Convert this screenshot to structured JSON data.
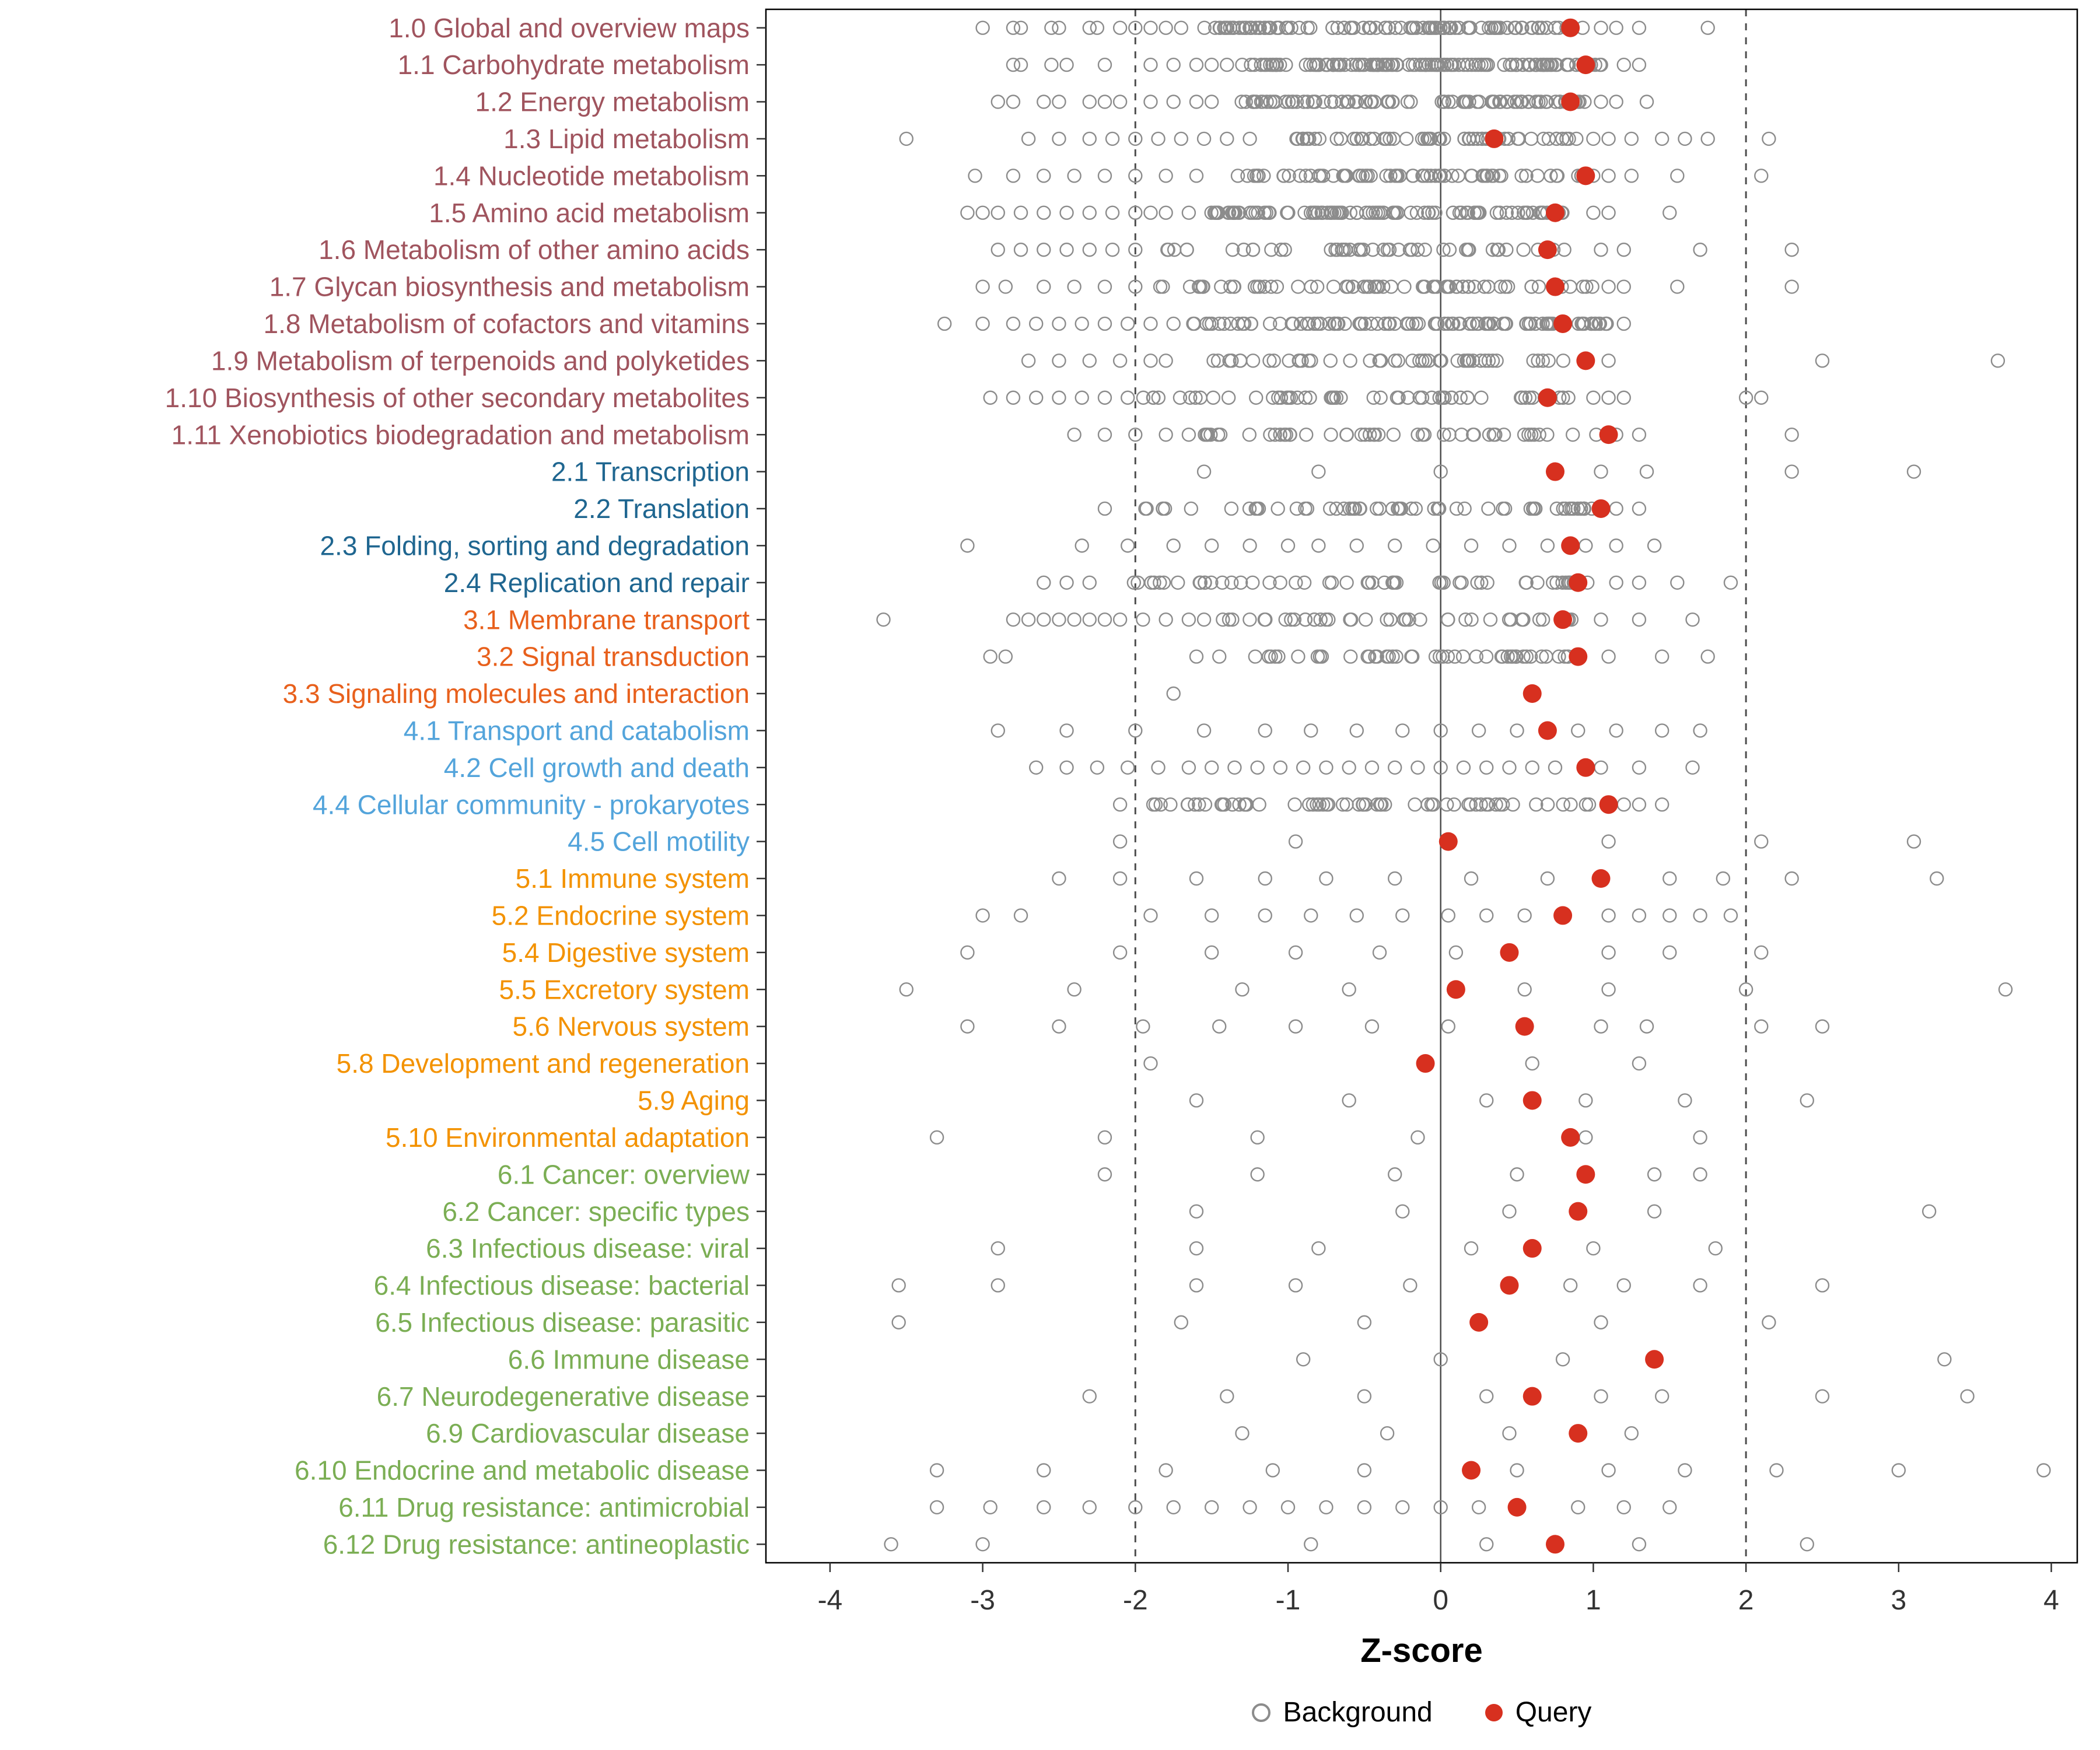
{
  "chart_data": {
    "type": "scatter",
    "title": "",
    "xlabel": "Z-score",
    "x_ticks": [
      -4,
      -3,
      -2,
      -1,
      0,
      1,
      2,
      3,
      4
    ],
    "x_tick_labels": [
      "-4",
      "-3",
      "-2",
      "-1",
      "0",
      "1",
      "2",
      "3",
      "4"
    ],
    "x_range": [
      -4.42,
      4.17
    ],
    "reference_lines": {
      "solid": [
        0
      ],
      "dashed": [
        -2,
        2
      ]
    },
    "legend": {
      "background": "Background",
      "query": "Query"
    },
    "colors": {
      "query": "#D7301F",
      "background": "#8C8C8C",
      "panel_border": "#000000",
      "reference_line": "#4d4d4d",
      "axis_text": "#333333"
    },
    "group_colors": {
      "metabolism": "#A0545E",
      "genetic-info": "#1F6690",
      "env-info": "#E8601C",
      "cellular": "#53A4DB",
      "organismal": "#F39200",
      "disease": "#7BAE54"
    },
    "categories": [
      {
        "label": "1.0 Global and overview maps",
        "group": "metabolism",
        "query": 0.85,
        "bg_cluster": {
          "n": 110,
          "min": -1.55,
          "max": 0.95
        },
        "bg_points": [
          -3.0,
          -2.8,
          -2.75,
          -2.55,
          -2.5,
          -2.3,
          -2.25,
          -2.1,
          -2.0,
          -1.9,
          -1.8,
          -1.7,
          1.05,
          1.15,
          1.3,
          1.75
        ]
      },
      {
        "label": "1.1 Carbohydrate metabolism",
        "group": "metabolism",
        "query": 0.95,
        "bg_cluster": {
          "n": 120,
          "min": -1.25,
          "max": 1.1
        },
        "bg_points": [
          -2.8,
          -2.75,
          -2.55,
          -2.45,
          -2.2,
          -1.9,
          -1.75,
          -1.6,
          -1.5,
          -1.4,
          -1.3,
          1.2,
          1.3
        ]
      },
      {
        "label": "1.2 Energy metabolism",
        "group": "metabolism",
        "query": 0.85,
        "bg_cluster": {
          "n": 90,
          "min": -1.35,
          "max": 0.95
        },
        "bg_points": [
          -2.9,
          -2.8,
          -2.6,
          -2.5,
          -2.3,
          -2.2,
          -2.1,
          -1.9,
          -1.75,
          -1.6,
          -1.5,
          1.05,
          1.15,
          1.35
        ]
      },
      {
        "label": "1.3 Lipid metabolism",
        "group": "metabolism",
        "query": 0.35,
        "bg_cluster": {
          "n": 60,
          "min": -1.05,
          "max": 0.9
        },
        "bg_points": [
          -3.5,
          -2.7,
          -2.5,
          -2.3,
          -2.15,
          -2.0,
          -1.85,
          -1.7,
          -1.55,
          -1.4,
          -1.25,
          1.0,
          1.1,
          1.25,
          1.45,
          1.6,
          1.75,
          2.15
        ]
      },
      {
        "label": "1.4 Nucleotide metabolism",
        "group": "metabolism",
        "query": 0.95,
        "bg_cluster": {
          "n": 70,
          "min": -1.4,
          "max": 1.0
        },
        "bg_points": [
          -3.05,
          -2.8,
          -2.6,
          -2.4,
          -2.2,
          -2.0,
          -1.8,
          -1.6,
          1.1,
          1.25,
          1.55,
          2.1
        ]
      },
      {
        "label": "1.5 Amino acid metabolism",
        "group": "metabolism",
        "query": 0.75,
        "bg_cluster": {
          "n": 100,
          "min": -1.55,
          "max": 0.9
        },
        "bg_points": [
          -3.1,
          -3.0,
          -2.9,
          -2.75,
          -2.6,
          -2.45,
          -2.3,
          -2.15,
          -2.0,
          -1.9,
          -1.8,
          -1.65,
          1.0,
          1.1,
          1.5
        ]
      },
      {
        "label": "1.6 Metabolism of other amino acids",
        "group": "metabolism",
        "query": 0.7,
        "bg_cluster": {
          "n": 45,
          "min": -1.8,
          "max": 0.95
        },
        "bg_points": [
          -2.9,
          -2.75,
          -2.6,
          -2.45,
          -2.3,
          -2.15,
          -2.0,
          1.05,
          1.2,
          1.7,
          2.3
        ]
      },
      {
        "label": "1.7 Glycan biosynthesis and metabolism",
        "group": "metabolism",
        "query": 0.75,
        "bg_cluster": {
          "n": 70,
          "min": -1.85,
          "max": 1.0
        },
        "bg_points": [
          -3.0,
          -2.85,
          -2.6,
          -2.4,
          -2.2,
          -2.0,
          1.1,
          1.2,
          1.55,
          2.3
        ]
      },
      {
        "label": "1.8 Metabolism of cofactors and vitamins",
        "group": "metabolism",
        "query": 0.8,
        "bg_cluster": {
          "n": 95,
          "min": -1.65,
          "max": 1.1
        },
        "bg_points": [
          -3.25,
          -3.0,
          -2.8,
          -2.65,
          -2.5,
          -2.35,
          -2.2,
          -2.05,
          -1.9,
          -1.75,
          1.2
        ]
      },
      {
        "label": "1.9 Metabolism of terpenoids and polyketides",
        "group": "metabolism",
        "query": 0.95,
        "bg_cluster": {
          "n": 50,
          "min": -1.7,
          "max": 1.0
        },
        "bg_points": [
          -2.7,
          -2.5,
          -2.3,
          -2.1,
          -1.9,
          -1.8,
          1.1,
          2.5,
          3.65
        ]
      },
      {
        "label": "1.10 Biosynthesis of other secondary metabolites",
        "group": "metabolism",
        "query": 0.7,
        "bg_cluster": {
          "n": 55,
          "min": -1.95,
          "max": 0.85
        },
        "bg_points": [
          -2.95,
          -2.8,
          -2.65,
          -2.5,
          -2.35,
          -2.2,
          -2.05,
          1.0,
          1.1,
          1.2,
          2.0,
          2.1
        ]
      },
      {
        "label": "1.11 Xenobiotics biodegradation and metabolism",
        "group": "metabolism",
        "query": 1.1,
        "bg_cluster": {
          "n": 45,
          "min": -1.55,
          "max": 1.05
        },
        "bg_points": [
          -2.4,
          -2.2,
          -2.0,
          -1.8,
          -1.65,
          1.15,
          1.3,
          2.3
        ]
      },
      {
        "label": "2.1 Transcription",
        "group": "genetic-info",
        "query": 0.75,
        "bg_points": [
          -1.55,
          -0.8,
          0.0,
          1.05,
          1.35,
          2.3,
          3.1
        ]
      },
      {
        "label": "2.2 Translation",
        "group": "genetic-info",
        "query": 1.05,
        "bg_cluster": {
          "n": 60,
          "min": -1.95,
          "max": 1.0
        },
        "bg_points": [
          -2.2,
          1.15,
          1.3
        ]
      },
      {
        "label": "2.3 Folding, sorting and degradation",
        "group": "genetic-info",
        "query": 0.85,
        "bg_points": [
          -3.1,
          -2.35,
          -2.05,
          -1.75,
          -1.5,
          -1.25,
          -1.0,
          -0.8,
          -0.55,
          -0.3,
          -0.05,
          0.2,
          0.45,
          0.7,
          0.95,
          1.15,
          1.4
        ]
      },
      {
        "label": "2.4 Replication and repair",
        "group": "genetic-info",
        "query": 0.9,
        "bg_cluster": {
          "n": 55,
          "min": -2.1,
          "max": 1.0
        },
        "bg_points": [
          -2.6,
          -2.45,
          -2.3,
          1.15,
          1.3,
          1.55,
          1.9
        ]
      },
      {
        "label": "3.1 Membrane transport",
        "group": "env-info",
        "query": 0.8,
        "bg_cluster": {
          "n": 40,
          "min": -1.45,
          "max": 0.9
        },
        "bg_points": [
          -3.65,
          -2.8,
          -2.7,
          -2.6,
          -2.5,
          -2.4,
          -2.3,
          -2.2,
          -2.1,
          -1.95,
          -1.8,
          -1.65,
          -1.55,
          1.05,
          1.3,
          1.65
        ]
      },
      {
        "label": "3.2 Signal transduction",
        "group": "env-info",
        "query": 0.9,
        "bg_cluster": {
          "n": 45,
          "min": -1.3,
          "max": 0.95
        },
        "bg_points": [
          -2.95,
          -2.85,
          -1.6,
          -1.45,
          1.1,
          1.45,
          1.75
        ]
      },
      {
        "label": "3.3 Signaling molecules and interaction",
        "group": "env-info",
        "query": 0.6,
        "bg_points": [
          -1.75
        ]
      },
      {
        "label": "4.1 Transport and catabolism",
        "group": "cellular",
        "query": 0.7,
        "bg_points": [
          -2.9,
          -2.45,
          -2.0,
          -1.55,
          -1.15,
          -0.85,
          -0.55,
          -0.25,
          0.0,
          0.25,
          0.5,
          0.9,
          1.15,
          1.45,
          1.7
        ]
      },
      {
        "label": "4.2 Cell growth and death",
        "group": "cellular",
        "query": 0.95,
        "bg_points": [
          -2.65,
          -2.45,
          -2.25,
          -2.05,
          -1.85,
          -1.65,
          -1.5,
          -1.35,
          -1.2,
          -1.05,
          -0.9,
          -0.75,
          -0.6,
          -0.45,
          -0.3,
          -0.15,
          0.0,
          0.15,
          0.3,
          0.45,
          0.6,
          0.75,
          1.05,
          1.3,
          1.65
        ]
      },
      {
        "label": "4.4 Cellular community - prokaryotes",
        "group": "cellular",
        "query": 1.1,
        "bg_cluster": {
          "n": 60,
          "min": -1.9,
          "max": 1.0
        },
        "bg_points": [
          -2.1,
          1.2,
          1.3,
          1.45
        ]
      },
      {
        "label": "4.5 Cell motility",
        "group": "cellular",
        "query": 0.05,
        "bg_points": [
          -2.1,
          -0.95,
          1.1,
          2.1,
          3.1
        ]
      },
      {
        "label": "5.1 Immune system",
        "group": "organismal",
        "query": 1.05,
        "bg_points": [
          -2.5,
          -2.1,
          -1.6,
          -1.15,
          -0.75,
          -0.3,
          0.2,
          0.7,
          1.5,
          1.85,
          2.3,
          3.25
        ]
      },
      {
        "label": "5.2 Endocrine system",
        "group": "organismal",
        "query": 0.8,
        "bg_points": [
          -3.0,
          -2.75,
          -1.9,
          -1.5,
          -1.15,
          -0.85,
          -0.55,
          -0.25,
          0.05,
          0.3,
          0.55,
          1.1,
          1.3,
          1.5,
          1.7,
          1.9
        ]
      },
      {
        "label": "5.4 Digestive system",
        "group": "organismal",
        "query": 0.45,
        "bg_points": [
          -3.1,
          -2.1,
          -1.5,
          -0.95,
          -0.4,
          0.1,
          1.1,
          1.5,
          2.1
        ]
      },
      {
        "label": "5.5 Excretory system",
        "group": "organismal",
        "query": 0.1,
        "bg_points": [
          -3.5,
          -2.4,
          -1.3,
          -0.6,
          0.55,
          1.1,
          2.0,
          3.7
        ]
      },
      {
        "label": "5.6 Nervous system",
        "group": "organismal",
        "query": 0.55,
        "bg_points": [
          -3.1,
          -2.5,
          -1.95,
          -1.45,
          -0.95,
          -0.45,
          0.05,
          1.05,
          1.35,
          2.1,
          2.5
        ]
      },
      {
        "label": "5.8 Development and regeneration",
        "group": "organismal",
        "query": -0.1,
        "bg_points": [
          -1.9,
          0.6,
          1.3
        ]
      },
      {
        "label": "5.9 Aging",
        "group": "organismal",
        "query": 0.6,
        "bg_points": [
          -1.6,
          -0.6,
          0.3,
          0.95,
          1.6,
          2.4
        ]
      },
      {
        "label": "5.10 Environmental adaptation",
        "group": "organismal",
        "query": 0.85,
        "bg_points": [
          -3.3,
          -2.2,
          -1.2,
          -0.15,
          0.95,
          1.7
        ]
      },
      {
        "label": "6.1 Cancer: overview",
        "group": "disease",
        "query": 0.95,
        "bg_points": [
          -2.2,
          -1.2,
          -0.3,
          0.5,
          1.4,
          1.7
        ]
      },
      {
        "label": "6.2 Cancer: specific types",
        "group": "disease",
        "query": 0.9,
        "bg_points": [
          -1.6,
          -0.25,
          0.45,
          1.4,
          3.2
        ]
      },
      {
        "label": "6.3 Infectious disease: viral",
        "group": "disease",
        "query": 0.6,
        "bg_points": [
          -2.9,
          -1.6,
          -0.8,
          0.2,
          1.0,
          1.8
        ]
      },
      {
        "label": "6.4 Infectious disease: bacterial",
        "group": "disease",
        "query": 0.45,
        "bg_points": [
          -3.55,
          -2.9,
          -1.6,
          -0.95,
          -0.2,
          0.85,
          1.2,
          1.7,
          2.5
        ]
      },
      {
        "label": "6.5 Infectious disease: parasitic",
        "group": "disease",
        "query": 0.25,
        "bg_points": [
          -3.55,
          -1.7,
          -0.5,
          1.05,
          2.15
        ]
      },
      {
        "label": "6.6 Immune disease",
        "group": "disease",
        "query": 1.4,
        "bg_points": [
          -0.9,
          0.0,
          0.8,
          3.3
        ]
      },
      {
        "label": "6.7 Neurodegenerative disease",
        "group": "disease",
        "query": 0.6,
        "bg_points": [
          -2.3,
          -1.4,
          -0.5,
          0.3,
          1.05,
          1.45,
          2.5,
          3.45
        ]
      },
      {
        "label": "6.9 Cardiovascular disease",
        "group": "disease",
        "query": 0.9,
        "bg_points": [
          -1.3,
          -0.35,
          0.45,
          1.25
        ]
      },
      {
        "label": "6.10 Endocrine and metabolic disease",
        "group": "disease",
        "query": 0.2,
        "bg_points": [
          -3.3,
          -2.6,
          -1.8,
          -1.1,
          -0.5,
          0.5,
          1.1,
          1.6,
          2.2,
          3.0,
          3.95
        ]
      },
      {
        "label": "6.11 Drug resistance: antimicrobial",
        "group": "disease",
        "query": 0.5,
        "bg_points": [
          -3.3,
          -2.95,
          -2.6,
          -2.3,
          -2.0,
          -1.75,
          -1.5,
          -1.25,
          -1.0,
          -0.75,
          -0.5,
          -0.25,
          0.0,
          0.25,
          0.9,
          1.2,
          1.5
        ]
      },
      {
        "label": "6.12 Drug resistance: antineoplastic",
        "group": "disease",
        "query": 0.75,
        "bg_points": [
          -3.6,
          -3.0,
          -0.85,
          0.3,
          1.3,
          2.4
        ]
      }
    ]
  }
}
